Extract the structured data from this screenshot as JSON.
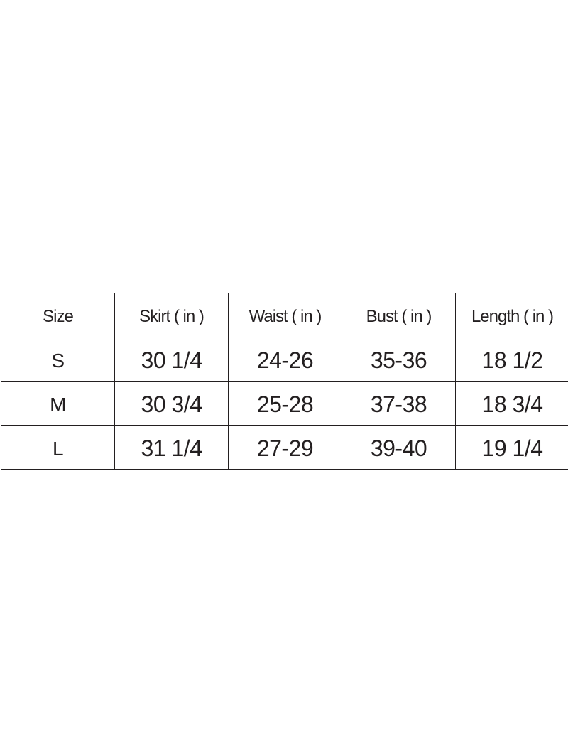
{
  "table": {
    "headers": [
      "Size",
      "Skirt ( in )",
      "Waist ( in )",
      "Bust ( in )",
      "Length ( in )"
    ],
    "rows": [
      [
        "S",
        "30 1/4",
        "24-26",
        "35-36",
        "18 1/2"
      ],
      [
        "M",
        "30 3/4",
        "25-28",
        "37-38",
        "18 3/4"
      ],
      [
        "L",
        "31 1/4",
        "27-29",
        "39-40",
        "19 1/4"
      ]
    ]
  }
}
